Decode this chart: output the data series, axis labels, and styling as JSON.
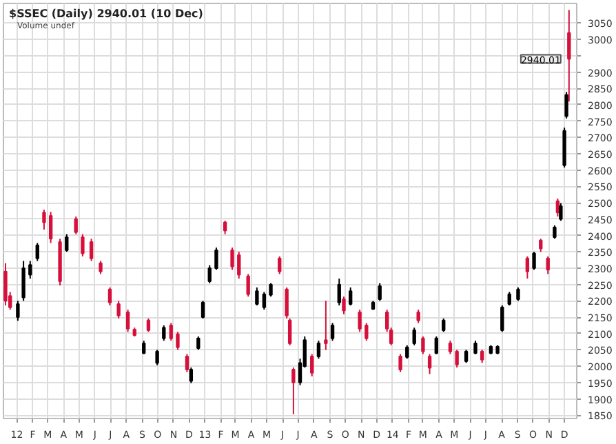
{
  "chart_data": {
    "type": "candlestick",
    "title": "$SSEC (Daily) 2940.01 (10 Dec)",
    "annotations": [
      "Volume undef",
      {
        "text": "2940.01",
        "x": "2014-12-10",
        "y": 2940.01
      }
    ],
    "x": [
      "2011-12-10",
      "2011-12-19",
      "2012-01-03",
      "2012-01-14",
      "2012-01-27",
      "2012-02-10",
      "2012-02-23",
      "2012-03-07",
      "2012-03-25",
      "2012-04-07",
      "2012-04-25",
      "2012-05-08",
      "2012-05-25",
      "2012-06-12",
      "2012-06-30",
      "2012-07-17",
      "2012-08-04",
      "2012-08-17",
      "2012-09-04",
      "2012-09-13",
      "2012-09-30",
      "2012-10-13",
      "2012-10-27",
      "2012-11-09",
      "2012-11-27",
      "2012-12-05",
      "2012-12-19",
      "2012-12-28",
      "2013-01-10",
      "2013-01-23",
      "2013-02-09",
      "2013-02-23",
      "2013-03-08",
      "2013-03-26",
      "2013-04-12",
      "2013-04-26",
      "2013-05-09",
      "2013-05-26",
      "2013-06-09",
      "2013-06-15",
      "2013-06-22",
      "2013-07-05",
      "2013-07-14",
      "2013-07-28",
      "2013-08-10",
      "2013-08-24",
      "2013-09-06",
      "2013-09-19",
      "2013-09-28",
      "2013-10-11",
      "2013-10-29",
      "2013-11-11",
      "2013-11-24",
      "2013-12-07",
      "2013-12-21",
      "2013-12-29",
      "2014-01-16",
      "2014-01-29",
      "2014-02-12",
      "2014-02-20",
      "2014-03-01",
      "2014-03-14",
      "2014-03-27",
      "2014-04-10",
      "2014-04-23",
      "2014-05-06",
      "2014-05-24",
      "2014-06-11",
      "2014-06-24",
      "2014-07-11",
      "2014-07-24",
      "2014-08-02",
      "2014-08-16",
      "2014-09-02",
      "2014-09-20",
      "2014-10-03",
      "2014-10-16",
      "2014-10-30",
      "2014-11-12",
      "2014-11-18",
      "2014-11-24",
      "2014-12-01",
      "2014-12-05",
      "2014-12-10"
    ],
    "ohlc": [
      [
        2290,
        2315,
        2186,
        2200
      ],
      [
        2215,
        2227,
        2173,
        2180
      ],
      [
        2150,
        2200,
        2139,
        2190
      ],
      [
        2210,
        2322,
        2200,
        2300
      ],
      [
        2280,
        2322,
        2268,
        2310
      ],
      [
        2330,
        2377,
        2322,
        2370
      ],
      [
        2470,
        2479,
        2418,
        2440
      ],
      [
        2460,
        2472,
        2377,
        2390
      ],
      [
        2380,
        2390,
        2247,
        2260
      ],
      [
        2355,
        2404,
        2350,
        2395
      ],
      [
        2450,
        2458,
        2404,
        2410
      ],
      [
        2395,
        2404,
        2336,
        2345
      ],
      [
        2380,
        2390,
        2322,
        2330
      ],
      [
        2315,
        2322,
        2282,
        2290
      ],
      [
        2235,
        2241,
        2186,
        2195
      ],
      [
        2190,
        2200,
        2146,
        2155
      ],
      [
        2165,
        2173,
        2105,
        2115
      ],
      [
        2112,
        2118,
        2091,
        2095
      ],
      [
        2040,
        2078,
        2037,
        2070
      ],
      [
        2140,
        2146,
        2105,
        2110
      ],
      [
        2010,
        2050,
        2003,
        2045
      ],
      [
        2085,
        2125,
        2078,
        2118
      ],
      [
        2125,
        2132,
        2078,
        2085
      ],
      [
        2098,
        2105,
        2050,
        2058
      ],
      [
        2030,
        2037,
        1982,
        1990
      ],
      [
        1955,
        1996,
        1948,
        1990
      ],
      [
        2055,
        2091,
        2050,
        2085
      ],
      [
        2150,
        2200,
        2146,
        2195
      ],
      [
        2260,
        2309,
        2254,
        2300
      ],
      [
        2300,
        2363,
        2295,
        2355
      ],
      [
        2440,
        2445,
        2404,
        2415
      ],
      [
        2355,
        2363,
        2295,
        2305
      ],
      [
        2340,
        2350,
        2268,
        2280
      ],
      [
        2275,
        2282,
        2213,
        2220
      ],
      [
        2190,
        2241,
        2186,
        2230
      ],
      [
        2180,
        2227,
        2173,
        2220
      ],
      [
        2218,
        2254,
        2213,
        2250
      ],
      [
        2330,
        2336,
        2282,
        2290
      ],
      [
        2235,
        2241,
        2146,
        2155
      ],
      [
        2140,
        2146,
        2064,
        2070
      ],
      [
        1990,
        1996,
        1853,
        1950
      ],
      [
        1950,
        2023,
        1942,
        2010
      ],
      [
        2000,
        2091,
        1996,
        2080
      ],
      [
        2030,
        2037,
        1969,
        1980
      ],
      [
        2030,
        2078,
        2023,
        2070
      ],
      [
        2080,
        2200,
        2050,
        2070
      ],
      [
        2085,
        2132,
        2078,
        2125
      ],
      [
        2195,
        2268,
        2186,
        2250
      ],
      [
        2205,
        2213,
        2159,
        2170
      ],
      [
        2190,
        2241,
        2186,
        2230
      ],
      [
        2165,
        2173,
        2105,
        2115
      ],
      [
        2125,
        2132,
        2078,
        2085
      ],
      [
        2175,
        2200,
        2173,
        2195
      ],
      [
        2205,
        2254,
        2200,
        2245
      ],
      [
        2165,
        2173,
        2105,
        2115
      ],
      [
        2110,
        2118,
        2064,
        2070
      ],
      [
        2030,
        2037,
        1982,
        1990
      ],
      [
        2028,
        2064,
        2023,
        2058
      ],
      [
        2070,
        2118,
        2064,
        2110
      ],
      [
        2165,
        2173,
        2132,
        2140
      ],
      [
        2085,
        2091,
        2037,
        2045
      ],
      [
        2030,
        2037,
        1976,
        1995
      ],
      [
        2040,
        2091,
        2037,
        2085
      ],
      [
        2110,
        2146,
        2105,
        2140
      ],
      [
        2070,
        2078,
        2037,
        2045
      ],
      [
        2045,
        2050,
        1996,
        2005
      ],
      [
        2015,
        2050,
        2010,
        2045
      ],
      [
        2040,
        2078,
        2037,
        2070
      ],
      [
        2045,
        2050,
        2010,
        2020
      ],
      [
        2040,
        2064,
        2037,
        2060
      ],
      [
        2040,
        2064,
        2037,
        2060
      ],
      [
        2110,
        2186,
        2105,
        2180
      ],
      [
        2190,
        2227,
        2186,
        2220
      ],
      [
        2205,
        2241,
        2200,
        2235
      ],
      [
        2330,
        2336,
        2268,
        2290
      ],
      [
        2300,
        2350,
        2295,
        2345
      ],
      [
        2385,
        2390,
        2350,
        2360
      ],
      [
        2330,
        2336,
        2282,
        2295
      ],
      [
        2395,
        2431,
        2390,
        2425
      ],
      [
        2505,
        2513,
        2458,
        2470
      ],
      [
        2450,
        2499,
        2445,
        2490
      ],
      [
        2615,
        2730,
        2608,
        2720
      ],
      [
        2765,
        2839,
        2758,
        2830
      ],
      [
        3020,
        3090,
        2810,
        2940.01
      ]
    ],
    "colors": [
      "#d6103c",
      "#d6103c",
      "#000000",
      "#000000",
      "#000000",
      "#000000",
      "#d6103c",
      "#d6103c",
      "#d6103c",
      "#000000",
      "#d6103c",
      "#d6103c",
      "#d6103c",
      "#d6103c",
      "#d6103c",
      "#d6103c",
      "#d6103c",
      "#d6103c",
      "#000000",
      "#d6103c",
      "#000000",
      "#000000",
      "#d6103c",
      "#d6103c",
      "#d6103c",
      "#000000",
      "#000000",
      "#000000",
      "#000000",
      "#000000",
      "#d6103c",
      "#d6103c",
      "#d6103c",
      "#d6103c",
      "#000000",
      "#000000",
      "#000000",
      "#d6103c",
      "#d6103c",
      "#d6103c",
      "#d6103c",
      "#000000",
      "#000000",
      "#d6103c",
      "#000000",
      "#d6103c",
      "#000000",
      "#000000",
      "#d6103c",
      "#000000",
      "#d6103c",
      "#d6103c",
      "#000000",
      "#000000",
      "#d6103c",
      "#d6103c",
      "#d6103c",
      "#000000",
      "#000000",
      "#d6103c",
      "#d6103c",
      "#d6103c",
      "#000000",
      "#000000",
      "#d6103c",
      "#d6103c",
      "#000000",
      "#000000",
      "#d6103c",
      "#000000",
      "#000000",
      "#000000",
      "#000000",
      "#000000",
      "#d6103c",
      "#000000",
      "#d6103c",
      "#d6103c",
      "#000000",
      "#d6103c",
      "#000000",
      "#000000",
      "#000000",
      "#d6103c"
    ],
    "xlim": [
      "2011-12-06",
      "2014-12-25"
    ],
    "xticks": [
      {
        "value": "2012-01-01",
        "label": "12"
      },
      {
        "value": "2012-02-01",
        "label": "F"
      },
      {
        "value": "2012-03-01",
        "label": "M"
      },
      {
        "value": "2012-04-01",
        "label": "A"
      },
      {
        "value": "2012-05-01",
        "label": "M"
      },
      {
        "value": "2012-06-01",
        "label": "J"
      },
      {
        "value": "2012-07-01",
        "label": "J"
      },
      {
        "value": "2012-08-01",
        "label": "A"
      },
      {
        "value": "2012-09-01",
        "label": "S"
      },
      {
        "value": "2012-10-01",
        "label": "O"
      },
      {
        "value": "2012-11-01",
        "label": "N"
      },
      {
        "value": "2012-12-01",
        "label": "D"
      },
      {
        "value": "2013-01-01",
        "label": "13"
      },
      {
        "value": "2013-02-01",
        "label": "F"
      },
      {
        "value": "2013-03-01",
        "label": "M"
      },
      {
        "value": "2013-04-01",
        "label": "A"
      },
      {
        "value": "2013-05-01",
        "label": "M"
      },
      {
        "value": "2013-06-01",
        "label": "J"
      },
      {
        "value": "2013-07-01",
        "label": "J"
      },
      {
        "value": "2013-08-01",
        "label": "A"
      },
      {
        "value": "2013-09-01",
        "label": "S"
      },
      {
        "value": "2013-10-01",
        "label": "O"
      },
      {
        "value": "2013-11-01",
        "label": "N"
      },
      {
        "value": "2013-12-01",
        "label": "D"
      },
      {
        "value": "2014-01-01",
        "label": "14"
      },
      {
        "value": "2014-02-01",
        "label": "F"
      },
      {
        "value": "2014-03-01",
        "label": "M"
      },
      {
        "value": "2014-04-01",
        "label": "A"
      },
      {
        "value": "2014-05-01",
        "label": "M"
      },
      {
        "value": "2014-06-01",
        "label": "J"
      },
      {
        "value": "2014-07-01",
        "label": "J"
      },
      {
        "value": "2014-08-01",
        "label": "A"
      },
      {
        "value": "2014-09-01",
        "label": "S"
      },
      {
        "value": "2014-10-01",
        "label": "O"
      },
      {
        "value": "2014-11-01",
        "label": "N"
      },
      {
        "value": "2014-12-01",
        "label": "D"
      }
    ],
    "ylim": [
      1840,
      3110
    ],
    "yticks": [
      1850,
      1900,
      1950,
      2000,
      2050,
      2100,
      2150,
      2200,
      2250,
      2300,
      2350,
      2400,
      2450,
      2500,
      2550,
      2600,
      2650,
      2700,
      2750,
      2800,
      2850,
      2900,
      {
        "value": 2950,
        "label": null
      },
      3000,
      3050
    ],
    "grid": true
  }
}
